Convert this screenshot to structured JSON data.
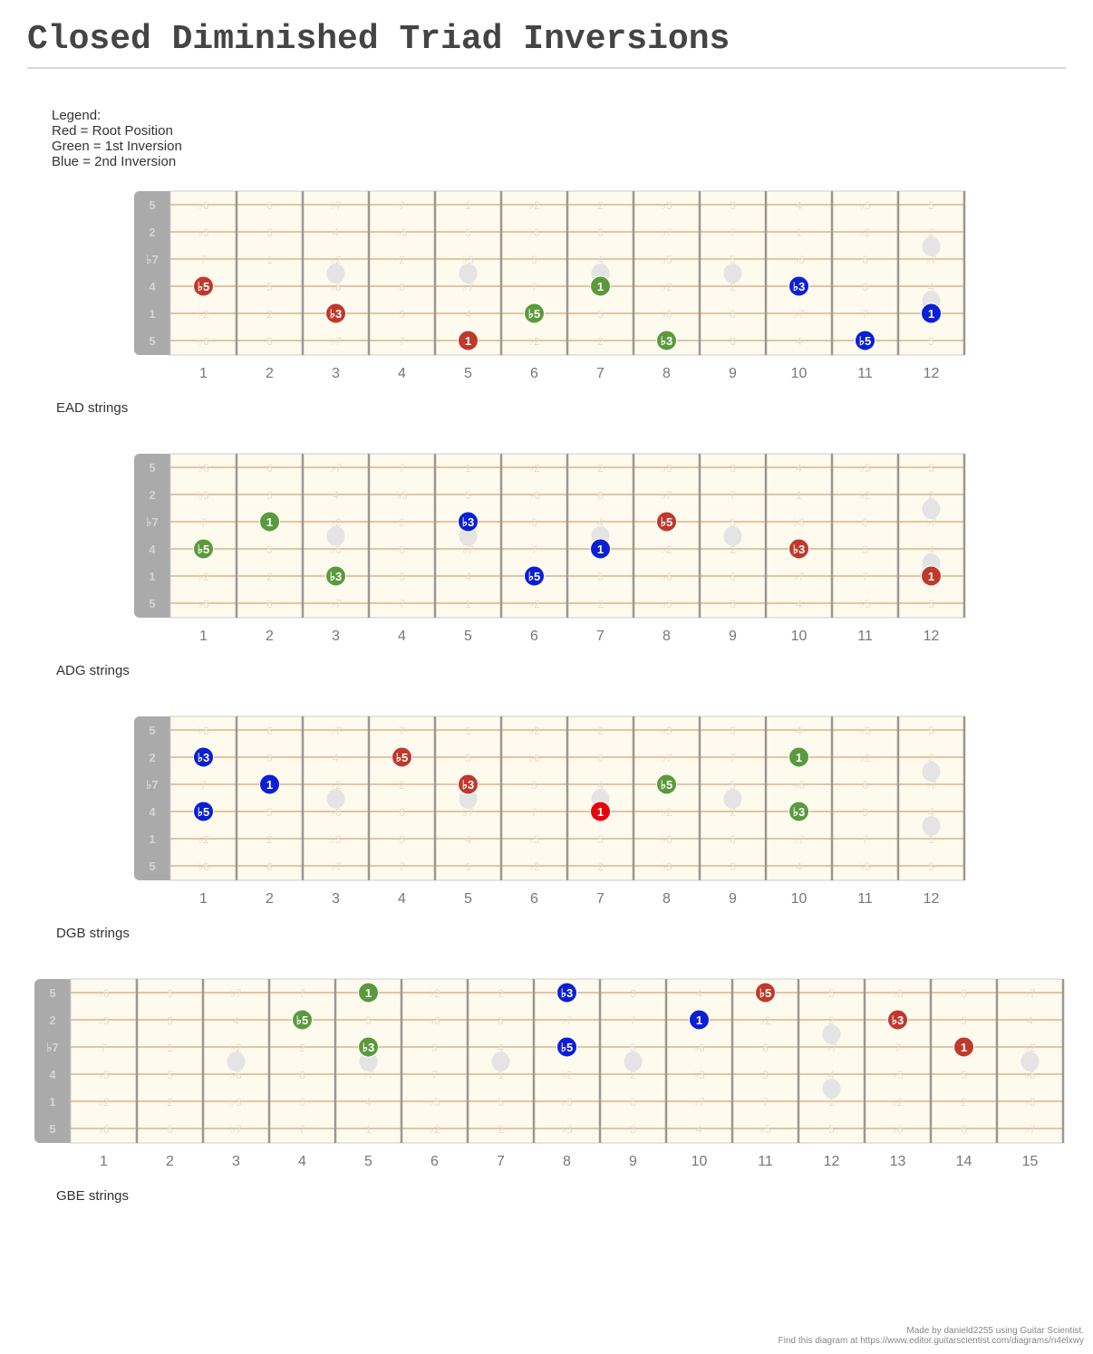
{
  "title": "Closed Diminished Triad Inversions",
  "legend": {
    "heading": "Legend:",
    "lines": [
      "Red = Root Position",
      "Green = 1st Inversion",
      "Blue = 2nd Inversion"
    ]
  },
  "colors": {
    "root": "#c0392b",
    "first": "#5b9a3c",
    "second": "#0a1fd6",
    "root_bright": "#e8000b"
  },
  "string_labels": [
    "5",
    "2",
    "♭7",
    "4",
    "1",
    "5"
  ],
  "diagrams": [
    {
      "caption": "EAD strings",
      "start_fret": 1,
      "end_fret": 12,
      "string_intervals": [
        "5",
        "2",
        "♭7",
        "4",
        "1",
        "5"
      ],
      "fret_numbers": [
        "1",
        "2",
        "3",
        "4",
        "5",
        "6",
        "7",
        "8",
        "9",
        "10",
        "11",
        "12"
      ],
      "notes": [
        {
          "string": 3,
          "fret": 1,
          "label": "♭5",
          "group": "root"
        },
        {
          "string": 4,
          "fret": 3,
          "label": "♭3",
          "group": "root"
        },
        {
          "string": 5,
          "fret": 5,
          "label": "1",
          "group": "root"
        },
        {
          "string": 4,
          "fret": 6,
          "label": "♭5",
          "group": "first"
        },
        {
          "string": 3,
          "fret": 7,
          "label": "1",
          "group": "first"
        },
        {
          "string": 5,
          "fret": 8,
          "label": "♭3",
          "group": "first"
        },
        {
          "string": 3,
          "fret": 10,
          "label": "♭3",
          "group": "second"
        },
        {
          "string": 5,
          "fret": 11,
          "label": "♭5",
          "group": "second"
        },
        {
          "string": 4,
          "fret": 12,
          "label": "1",
          "group": "second"
        }
      ]
    },
    {
      "caption": "ADG strings",
      "start_fret": 1,
      "end_fret": 12,
      "string_intervals": [
        "5",
        "2",
        "♭7",
        "4",
        "1",
        "5"
      ],
      "fret_numbers": [
        "1",
        "2",
        "3",
        "4",
        "5",
        "6",
        "7",
        "8",
        "9",
        "10",
        "11",
        "12"
      ],
      "notes": [
        {
          "string": 3,
          "fret": 1,
          "label": "♭5",
          "group": "first"
        },
        {
          "string": 2,
          "fret": 2,
          "label": "1",
          "group": "first"
        },
        {
          "string": 4,
          "fret": 3,
          "label": "♭3",
          "group": "first"
        },
        {
          "string": 2,
          "fret": 5,
          "label": "♭3",
          "group": "second"
        },
        {
          "string": 4,
          "fret": 6,
          "label": "♭5",
          "group": "second"
        },
        {
          "string": 3,
          "fret": 7,
          "label": "1",
          "group": "second"
        },
        {
          "string": 2,
          "fret": 8,
          "label": "♭5",
          "group": "root"
        },
        {
          "string": 3,
          "fret": 10,
          "label": "♭3",
          "group": "root"
        },
        {
          "string": 4,
          "fret": 12,
          "label": "1",
          "group": "root"
        }
      ]
    },
    {
      "caption": "DGB strings",
      "start_fret": 1,
      "end_fret": 12,
      "string_intervals": [
        "5",
        "2",
        "♭7",
        "4",
        "1",
        "5"
      ],
      "fret_numbers": [
        "1",
        "2",
        "3",
        "4",
        "5",
        "6",
        "7",
        "8",
        "9",
        "10",
        "11",
        "12"
      ],
      "notes": [
        {
          "string": 1,
          "fret": 1,
          "label": "♭3",
          "group": "second"
        },
        {
          "string": 3,
          "fret": 1,
          "label": "♭5",
          "group": "second"
        },
        {
          "string": 2,
          "fret": 2,
          "label": "1",
          "group": "second"
        },
        {
          "string": 1,
          "fret": 4,
          "label": "♭5",
          "group": "root"
        },
        {
          "string": 2,
          "fret": 5,
          "label": "♭3",
          "group": "root"
        },
        {
          "string": 3,
          "fret": 7,
          "label": "1",
          "group": "root_bright"
        },
        {
          "string": 2,
          "fret": 8,
          "label": "♭5",
          "group": "first"
        },
        {
          "string": 1,
          "fret": 10,
          "label": "1",
          "group": "first"
        },
        {
          "string": 3,
          "fret": 10,
          "label": "♭3",
          "group": "first"
        }
      ]
    },
    {
      "caption": "GBE strings",
      "start_fret": 1,
      "end_fret": 15,
      "string_intervals": [
        "5",
        "2",
        "♭7",
        "4",
        "1",
        "5"
      ],
      "fret_numbers": [
        "1",
        "2",
        "3",
        "4",
        "5",
        "6",
        "7",
        "8",
        "9",
        "10",
        "11",
        "12",
        "13",
        "14",
        "15"
      ],
      "notes": [
        {
          "string": 1,
          "fret": 4,
          "label": "♭5",
          "group": "first"
        },
        {
          "string": 0,
          "fret": 5,
          "label": "1",
          "group": "first"
        },
        {
          "string": 2,
          "fret": 5,
          "label": "♭3",
          "group": "first"
        },
        {
          "string": 0,
          "fret": 8,
          "label": "♭3",
          "group": "second"
        },
        {
          "string": 2,
          "fret": 8,
          "label": "♭5",
          "group": "second"
        },
        {
          "string": 1,
          "fret": 10,
          "label": "1",
          "group": "second"
        },
        {
          "string": 0,
          "fret": 11,
          "label": "♭5",
          "group": "root"
        },
        {
          "string": 1,
          "fret": 13,
          "label": "♭3",
          "group": "root"
        },
        {
          "string": 2,
          "fret": 14,
          "label": "1",
          "group": "root"
        }
      ]
    }
  ],
  "footer": {
    "line1": "Made by danield2255 using Guitar Scientist.",
    "line2": "Find this diagram at https://www.editor.guitarscientist.com/diagrams/n4elxwy"
  }
}
